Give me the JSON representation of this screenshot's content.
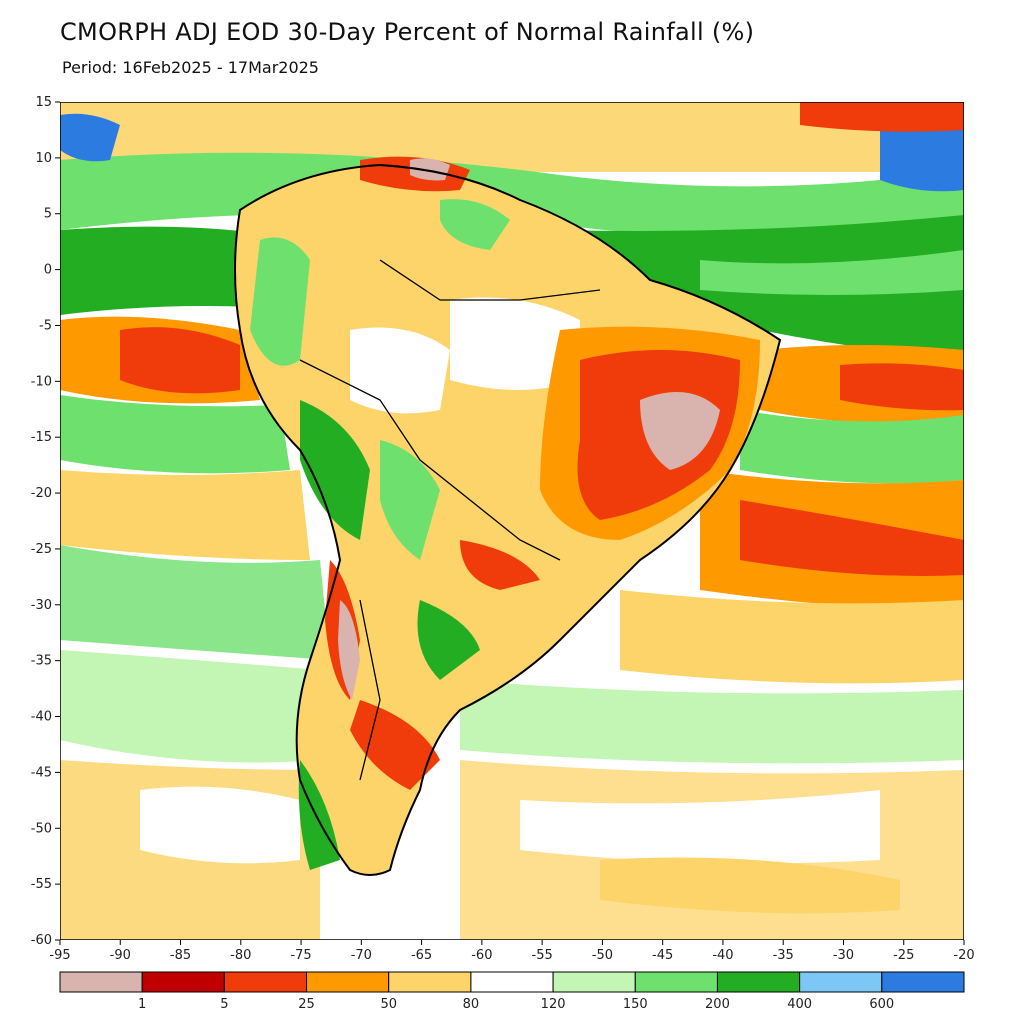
{
  "title": "CMORPH ADJ EOD 30-Day Percent of Normal Rainfall (%)",
  "period": "Period: 16Feb2025 - 17Mar2025",
  "axes": {
    "lat_labels": [
      "15",
      "10",
      "5",
      "0",
      "-5",
      "-10",
      "-15",
      "-20",
      "-25",
      "-30",
      "-35",
      "-40",
      "-45",
      "-50",
      "-55",
      "-60"
    ],
    "lon_labels": [
      "-95",
      "-90",
      "-85",
      "-80",
      "-75",
      "-70",
      "-65",
      "-60",
      "-55",
      "-50",
      "-45",
      "-40",
      "-35",
      "-30",
      "-25",
      "-20"
    ],
    "lat_range": [
      -60,
      15
    ],
    "lon_range": [
      -95,
      -20
    ]
  },
  "colorbar": {
    "colors": [
      "#d9b3ae",
      "#c00000",
      "#f03c0a",
      "#ff9900",
      "#fcd46a",
      "#ffffff",
      "#c3f5b4",
      "#6ee06e",
      "#22ad22",
      "#7cc7f5",
      "#2c7be0"
    ],
    "labels": [
      "1",
      "5",
      "25",
      "50",
      "80",
      "120",
      "150",
      "200",
      "400",
      "600"
    ]
  },
  "colors": {
    "dry_extreme": "#d9b3ae",
    "very_dry": "#c00000",
    "dry": "#f03c0a",
    "below": "#ff9900",
    "slightly_below": "#fcd46a",
    "normal": "#ffffff",
    "slightly_above": "#c3f5b4",
    "above": "#6ee06e",
    "wet": "#22ad22",
    "very_wet": "#7cc7f5",
    "extreme_wet": "#2c7be0"
  }
}
